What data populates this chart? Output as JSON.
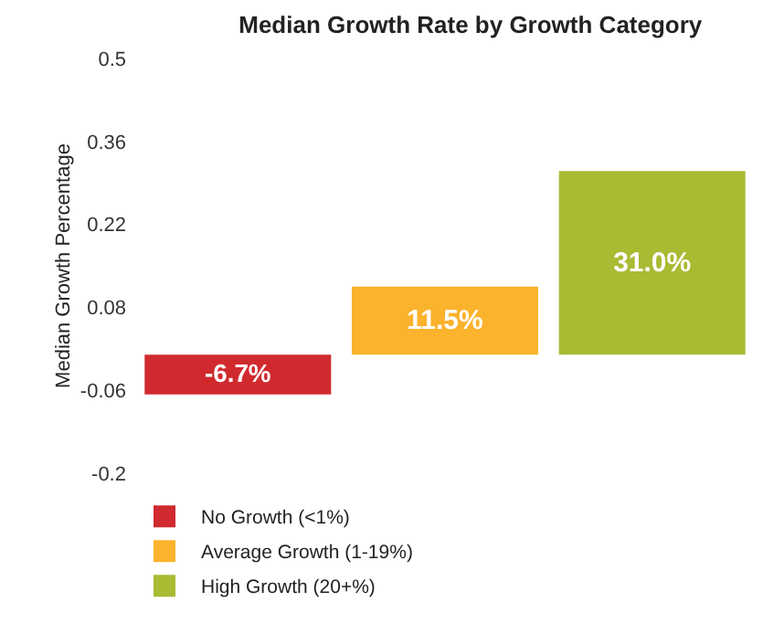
{
  "chart_data": {
    "type": "bar",
    "title": "Median Growth Rate by Growth Category",
    "ylabel": "Median Growth Percentage",
    "categories": [
      null
    ],
    "series": [
      {
        "name": "No Growth (<1%)",
        "color": "#d02a2f",
        "values": [
          -0.067
        ],
        "value_labels": [
          "-6.7%"
        ]
      },
      {
        "name": "Average Growth (1-19%)",
        "color": "#fbb22c",
        "values": [
          0.115
        ],
        "value_labels": [
          "11.5%"
        ]
      },
      {
        "name": "High Growth (20+%)",
        "color": "#a9ba33",
        "values": [
          0.31
        ],
        "value_labels": [
          "31.0%"
        ]
      }
    ],
    "ylim": [
      -0.2,
      0.5
    ],
    "yticks": [
      -0.2,
      -0.06,
      0.08,
      0.22,
      0.36,
      0.5
    ],
    "grid": false,
    "legend": "bottom left"
  }
}
